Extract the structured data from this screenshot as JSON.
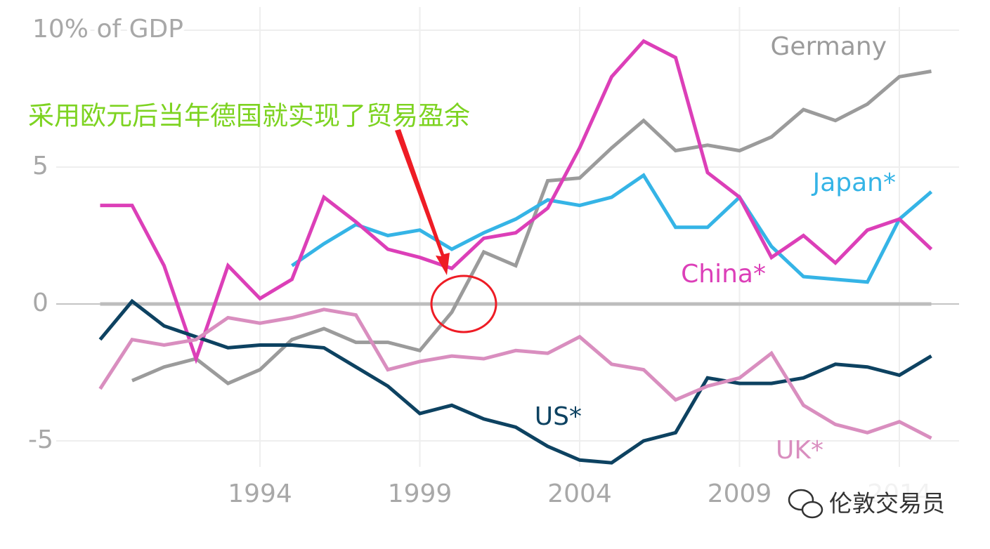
{
  "chart_data": {
    "type": "line",
    "annotation": "采用欧元后当年德国就实现了贸易盈余",
    "watermark": "伦敦交易员",
    "x": [
      1989,
      1990,
      1991,
      1992,
      1993,
      1994,
      1995,
      1996,
      1997,
      1998,
      1999,
      2000,
      2001,
      2002,
      2003,
      2004,
      2005,
      2006,
      2007,
      2008,
      2009,
      2010,
      2011,
      2012,
      2013,
      2014,
      2015
    ],
    "series": [
      {
        "name": "Germany",
        "color": "#9b9b9b",
        "values": [
          null,
          -2.8,
          -2.3,
          -2.0,
          -2.9,
          -2.4,
          -1.3,
          -0.9,
          -1.4,
          -1.4,
          -1.7,
          -0.3,
          1.9,
          1.4,
          4.5,
          4.6,
          5.7,
          6.7,
          5.6,
          5.8,
          5.6,
          6.1,
          7.1,
          6.7,
          7.3,
          8.3,
          8.5
        ]
      },
      {
        "name": "Japan*",
        "color": "#35b4e6",
        "values": [
          null,
          null,
          null,
          null,
          null,
          null,
          1.4,
          2.2,
          2.9,
          2.5,
          2.7,
          2.0,
          2.6,
          3.1,
          3.8,
          3.6,
          3.9,
          4.7,
          2.8,
          2.8,
          3.9,
          2.1,
          1.0,
          0.9,
          0.8,
          3.1,
          4.1
        ]
      },
      {
        "name": "China*",
        "color": "#dc3fb8",
        "values": [
          3.6,
          3.6,
          1.4,
          -2.0,
          1.4,
          0.2,
          0.9,
          3.9,
          3.0,
          2.0,
          1.7,
          1.3,
          2.4,
          2.6,
          3.5,
          5.7,
          8.3,
          9.6,
          9.0,
          4.8,
          3.9,
          1.7,
          2.5,
          1.5,
          2.7,
          3.1,
          2.0
        ]
      },
      {
        "name": "US*",
        "color": "#0d4261",
        "values": [
          -1.3,
          0.1,
          -0.8,
          -1.2,
          -1.6,
          -1.5,
          -1.5,
          -1.6,
          -2.3,
          -3.0,
          -4.0,
          -3.7,
          -4.2,
          -4.5,
          -5.2,
          -5.7,
          -5.8,
          -5.0,
          -4.7,
          -2.7,
          -2.9,
          -2.9,
          -2.7,
          -2.2,
          -2.3,
          -2.6,
          -1.9
        ]
      },
      {
        "name": "UK*",
        "color": "#d98ebf",
        "values": [
          -3.1,
          -1.3,
          -1.5,
          -1.3,
          -0.5,
          -0.7,
          -0.5,
          -0.2,
          -0.4,
          -2.4,
          -2.1,
          -1.9,
          -2.0,
          -1.7,
          -1.8,
          -1.2,
          -2.2,
          -2.4,
          -3.5,
          -3.0,
          -2.7,
          -1.8,
          -3.7,
          -4.4,
          -4.7,
          -4.3,
          -4.9
        ]
      }
    ],
    "xlim": [
      1988,
      2016
    ],
    "xticks": [
      1994,
      1999,
      2004,
      2009,
      2014
    ],
    "ylim": [
      -6.5,
      10.5
    ],
    "yticks": [
      {
        "value": 10,
        "label": "10% of GDP"
      },
      5,
      0,
      -5
    ],
    "grid": true
  }
}
